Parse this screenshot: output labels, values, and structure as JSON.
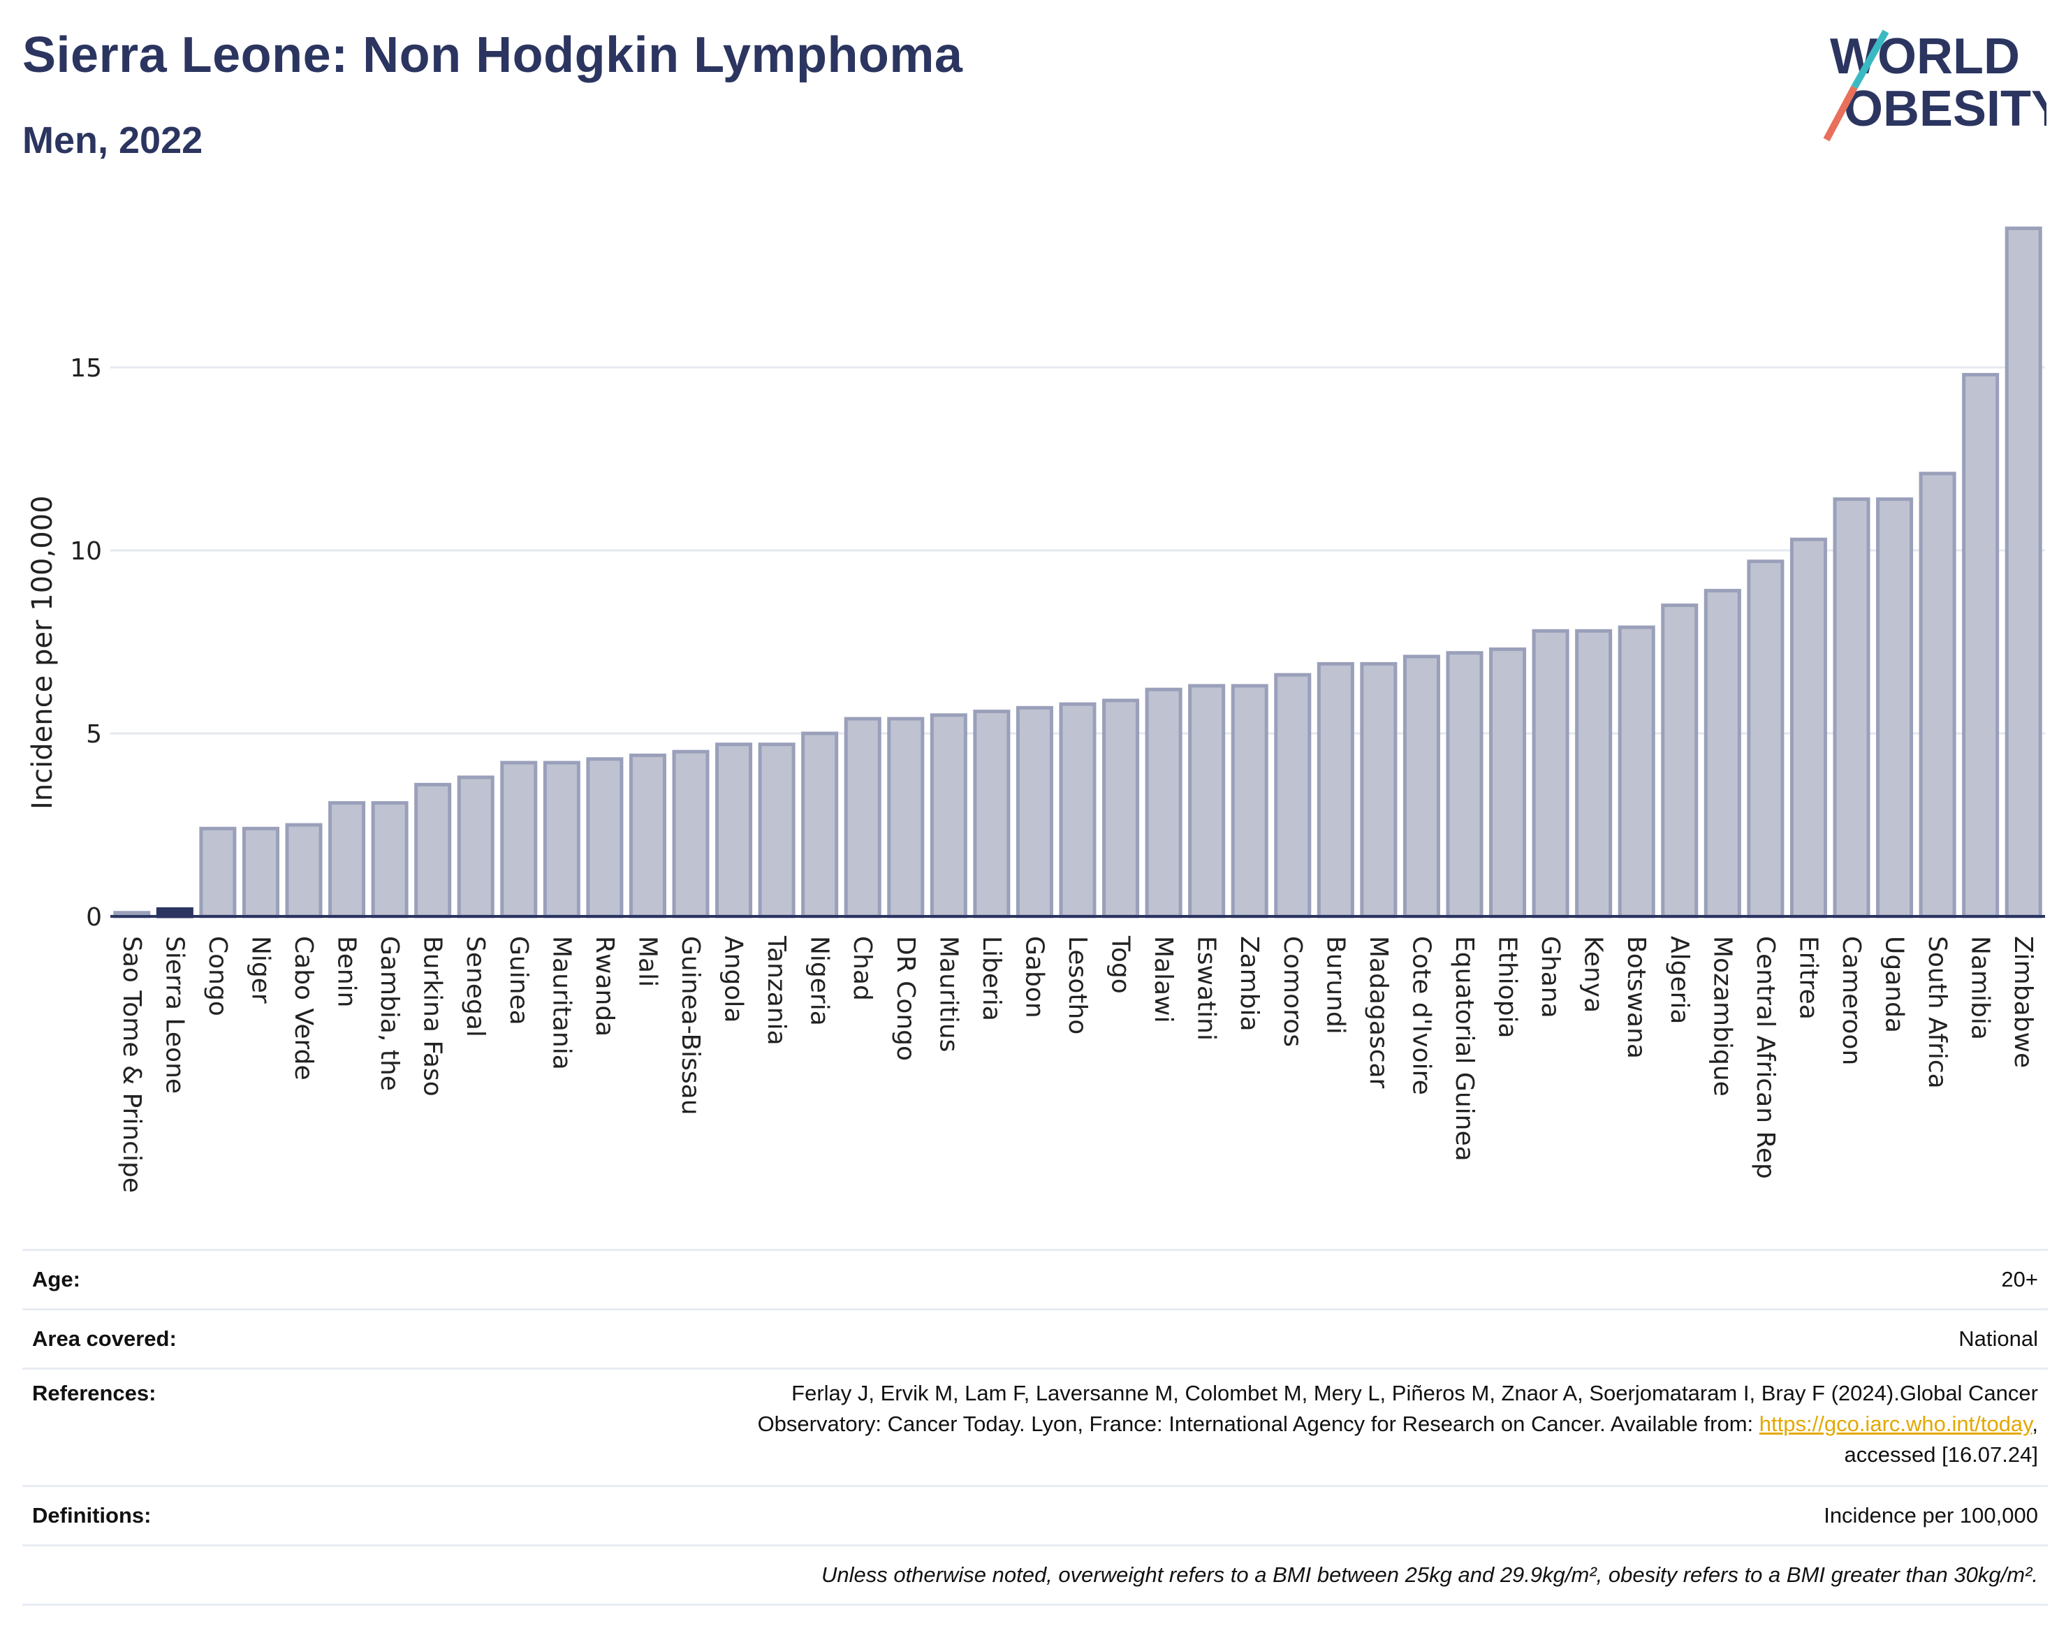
{
  "title": "Sierra Leone: Non Hodgkin Lymphoma",
  "subtitle": "Men, 2022",
  "logo": {
    "line1": "WORLD",
    "line2": "OBESITY"
  },
  "colors": {
    "title": "#2b3560",
    "bar": "#bfc3d1",
    "bar_edge": "#9a9fba",
    "highlight": "#2b3560",
    "link": "#e3a800",
    "grid": "#e5e8ef"
  },
  "chart_data": {
    "type": "bar",
    "ylabel": "Incidence per 100,000",
    "ylim": [
      0,
      19
    ],
    "yticks": [
      0,
      5,
      10,
      15
    ],
    "highlight": "Sierra Leone",
    "categories": [
      "Sao Tome & Principe",
      "Sierra Leone",
      "Congo",
      "Niger",
      "Cabo Verde",
      "Benin",
      "Gambia, the",
      "Burkina Faso",
      "Senegal",
      "Guinea",
      "Mauritania",
      "Rwanda",
      "Mali",
      "Guinea-Bissau",
      "Angola",
      "Tanzania",
      "Nigeria",
      "Chad",
      "DR Congo",
      "Mauritius",
      "Liberia",
      "Gabon",
      "Lesotho",
      "Togo",
      "Malawi",
      "Eswatini",
      "Zambia",
      "Comoros",
      "Burundi",
      "Madagascar",
      "Cote d'Ivoire",
      "Equatorial Guinea",
      "Ethiopia",
      "Ghana",
      "Kenya",
      "Botswana",
      "Algeria",
      "Mozambique",
      "Central African Rep",
      "Eritrea",
      "Cameroon",
      "Uganda",
      "South Africa",
      "Namibia",
      "Zimbabwe"
    ],
    "values": [
      0.1,
      0.2,
      2.4,
      2.4,
      2.5,
      3.1,
      3.1,
      3.6,
      3.8,
      4.2,
      4.2,
      4.3,
      4.4,
      4.5,
      4.7,
      4.7,
      5.0,
      5.4,
      5.4,
      5.5,
      5.6,
      5.7,
      5.8,
      5.9,
      6.2,
      6.3,
      6.3,
      6.6,
      6.9,
      6.9,
      7.1,
      7.2,
      7.3,
      7.8,
      7.8,
      7.9,
      8.5,
      8.9,
      9.7,
      10.3,
      11.4,
      11.4,
      12.1,
      14.8,
      18.8
    ]
  },
  "info": [
    {
      "label": "Age:",
      "value": "20+"
    },
    {
      "label": "Area covered:",
      "value": "National"
    },
    {
      "label": "References:",
      "ref_text1": "Ferlay J, Ervik M, Lam F, Laversanne M, Colombet M, Mery L, Piñeros M, Znaor A, Soerjomataram I, Bray F (2024).Global Cancer",
      "ref_text2": "Observatory: Cancer Today. Lyon, France: International Agency for Research on Cancer. Available from: ",
      "ref_link": "https://gco.iarc.who.int/today",
      "ref_text3": ",",
      "ref_text4": "accessed [16.07.24]"
    },
    {
      "label": "Definitions:",
      "value": "Incidence per 100,000"
    },
    {
      "label": "",
      "value": "Unless otherwise noted, overweight refers to a BMI between 25kg and 29.9kg/m², obesity refers to a BMI greater than 30kg/m²."
    }
  ]
}
